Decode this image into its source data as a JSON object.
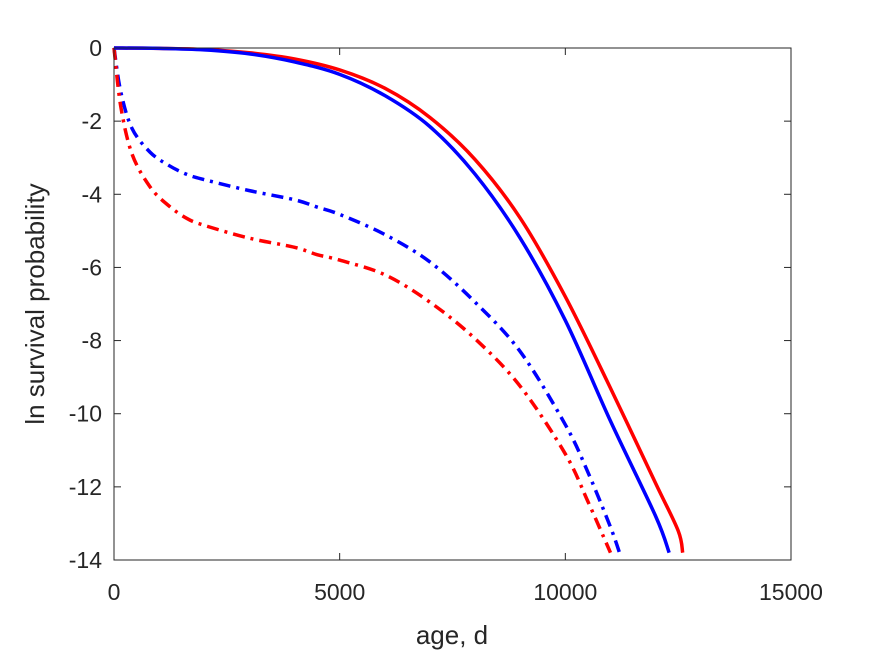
{
  "chart_data": {
    "type": "line",
    "title": "",
    "xlabel": "age, d",
    "ylabel": "ln survival probability",
    "xlim": [
      0,
      15000
    ],
    "ylim": [
      -14,
      0
    ],
    "xticks": [
      0,
      5000,
      10000,
      15000
    ],
    "yticks": [
      0,
      -2,
      -4,
      -6,
      -8,
      -10,
      -12,
      -14
    ],
    "xtick_labels": [
      "0",
      "5000",
      "10000",
      "15000"
    ],
    "ytick_labels": [
      "0",
      "-2",
      "-4",
      "-6",
      "-8",
      "-10",
      "-12",
      "-14"
    ],
    "grid": false,
    "legend": "none",
    "series": [
      {
        "color": "#ff0000",
        "style": "solid",
        "x": [
          0,
          1000,
          2000,
          3000,
          4000,
          5000,
          6000,
          7000,
          8000,
          9000,
          10000,
          11000,
          12000,
          12500,
          12600
        ],
        "y": [
          0,
          -0.01,
          -0.04,
          -0.13,
          -0.3,
          -0.6,
          -1.1,
          -1.9,
          -3.05,
          -4.65,
          -6.8,
          -9.3,
          -11.9,
          -13.2,
          -13.8
        ]
      },
      {
        "color": "#0000ff",
        "style": "solid",
        "x": [
          0,
          1000,
          2000,
          3000,
          4000,
          5000,
          6000,
          7000,
          8000,
          9000,
          10000,
          11000,
          12000,
          12300
        ],
        "y": [
          0,
          -0.01,
          -0.05,
          -0.16,
          -0.38,
          -0.72,
          -1.3,
          -2.15,
          -3.45,
          -5.2,
          -7.45,
          -10.2,
          -12.8,
          -13.8
        ]
      },
      {
        "color": "#0000ff",
        "style": "dashdot",
        "x": [
          0,
          150,
          400,
          800,
          1200,
          1600,
          2000,
          3000,
          4000,
          4500,
          5000,
          6000,
          7000,
          8000,
          9000,
          10000,
          10500,
          11000,
          11200
        ],
        "y": [
          0,
          -1.2,
          -2.2,
          -2.85,
          -3.2,
          -3.45,
          -3.6,
          -3.9,
          -4.15,
          -4.35,
          -4.55,
          -5.1,
          -5.85,
          -6.95,
          -8.3,
          -10.3,
          -11.6,
          -13.1,
          -13.8
        ]
      },
      {
        "color": "#ff0000",
        "style": "dashdot",
        "x": [
          0,
          150,
          400,
          800,
          1200,
          1600,
          2000,
          3000,
          4000,
          4500,
          5000,
          6000,
          7000,
          8000,
          9000,
          10000,
          10500,
          11000
        ],
        "y": [
          0,
          -1.6,
          -2.9,
          -3.8,
          -4.3,
          -4.65,
          -4.85,
          -5.2,
          -5.45,
          -5.65,
          -5.8,
          -6.2,
          -6.95,
          -7.95,
          -9.25,
          -11.1,
          -12.4,
          -13.8
        ]
      }
    ]
  }
}
